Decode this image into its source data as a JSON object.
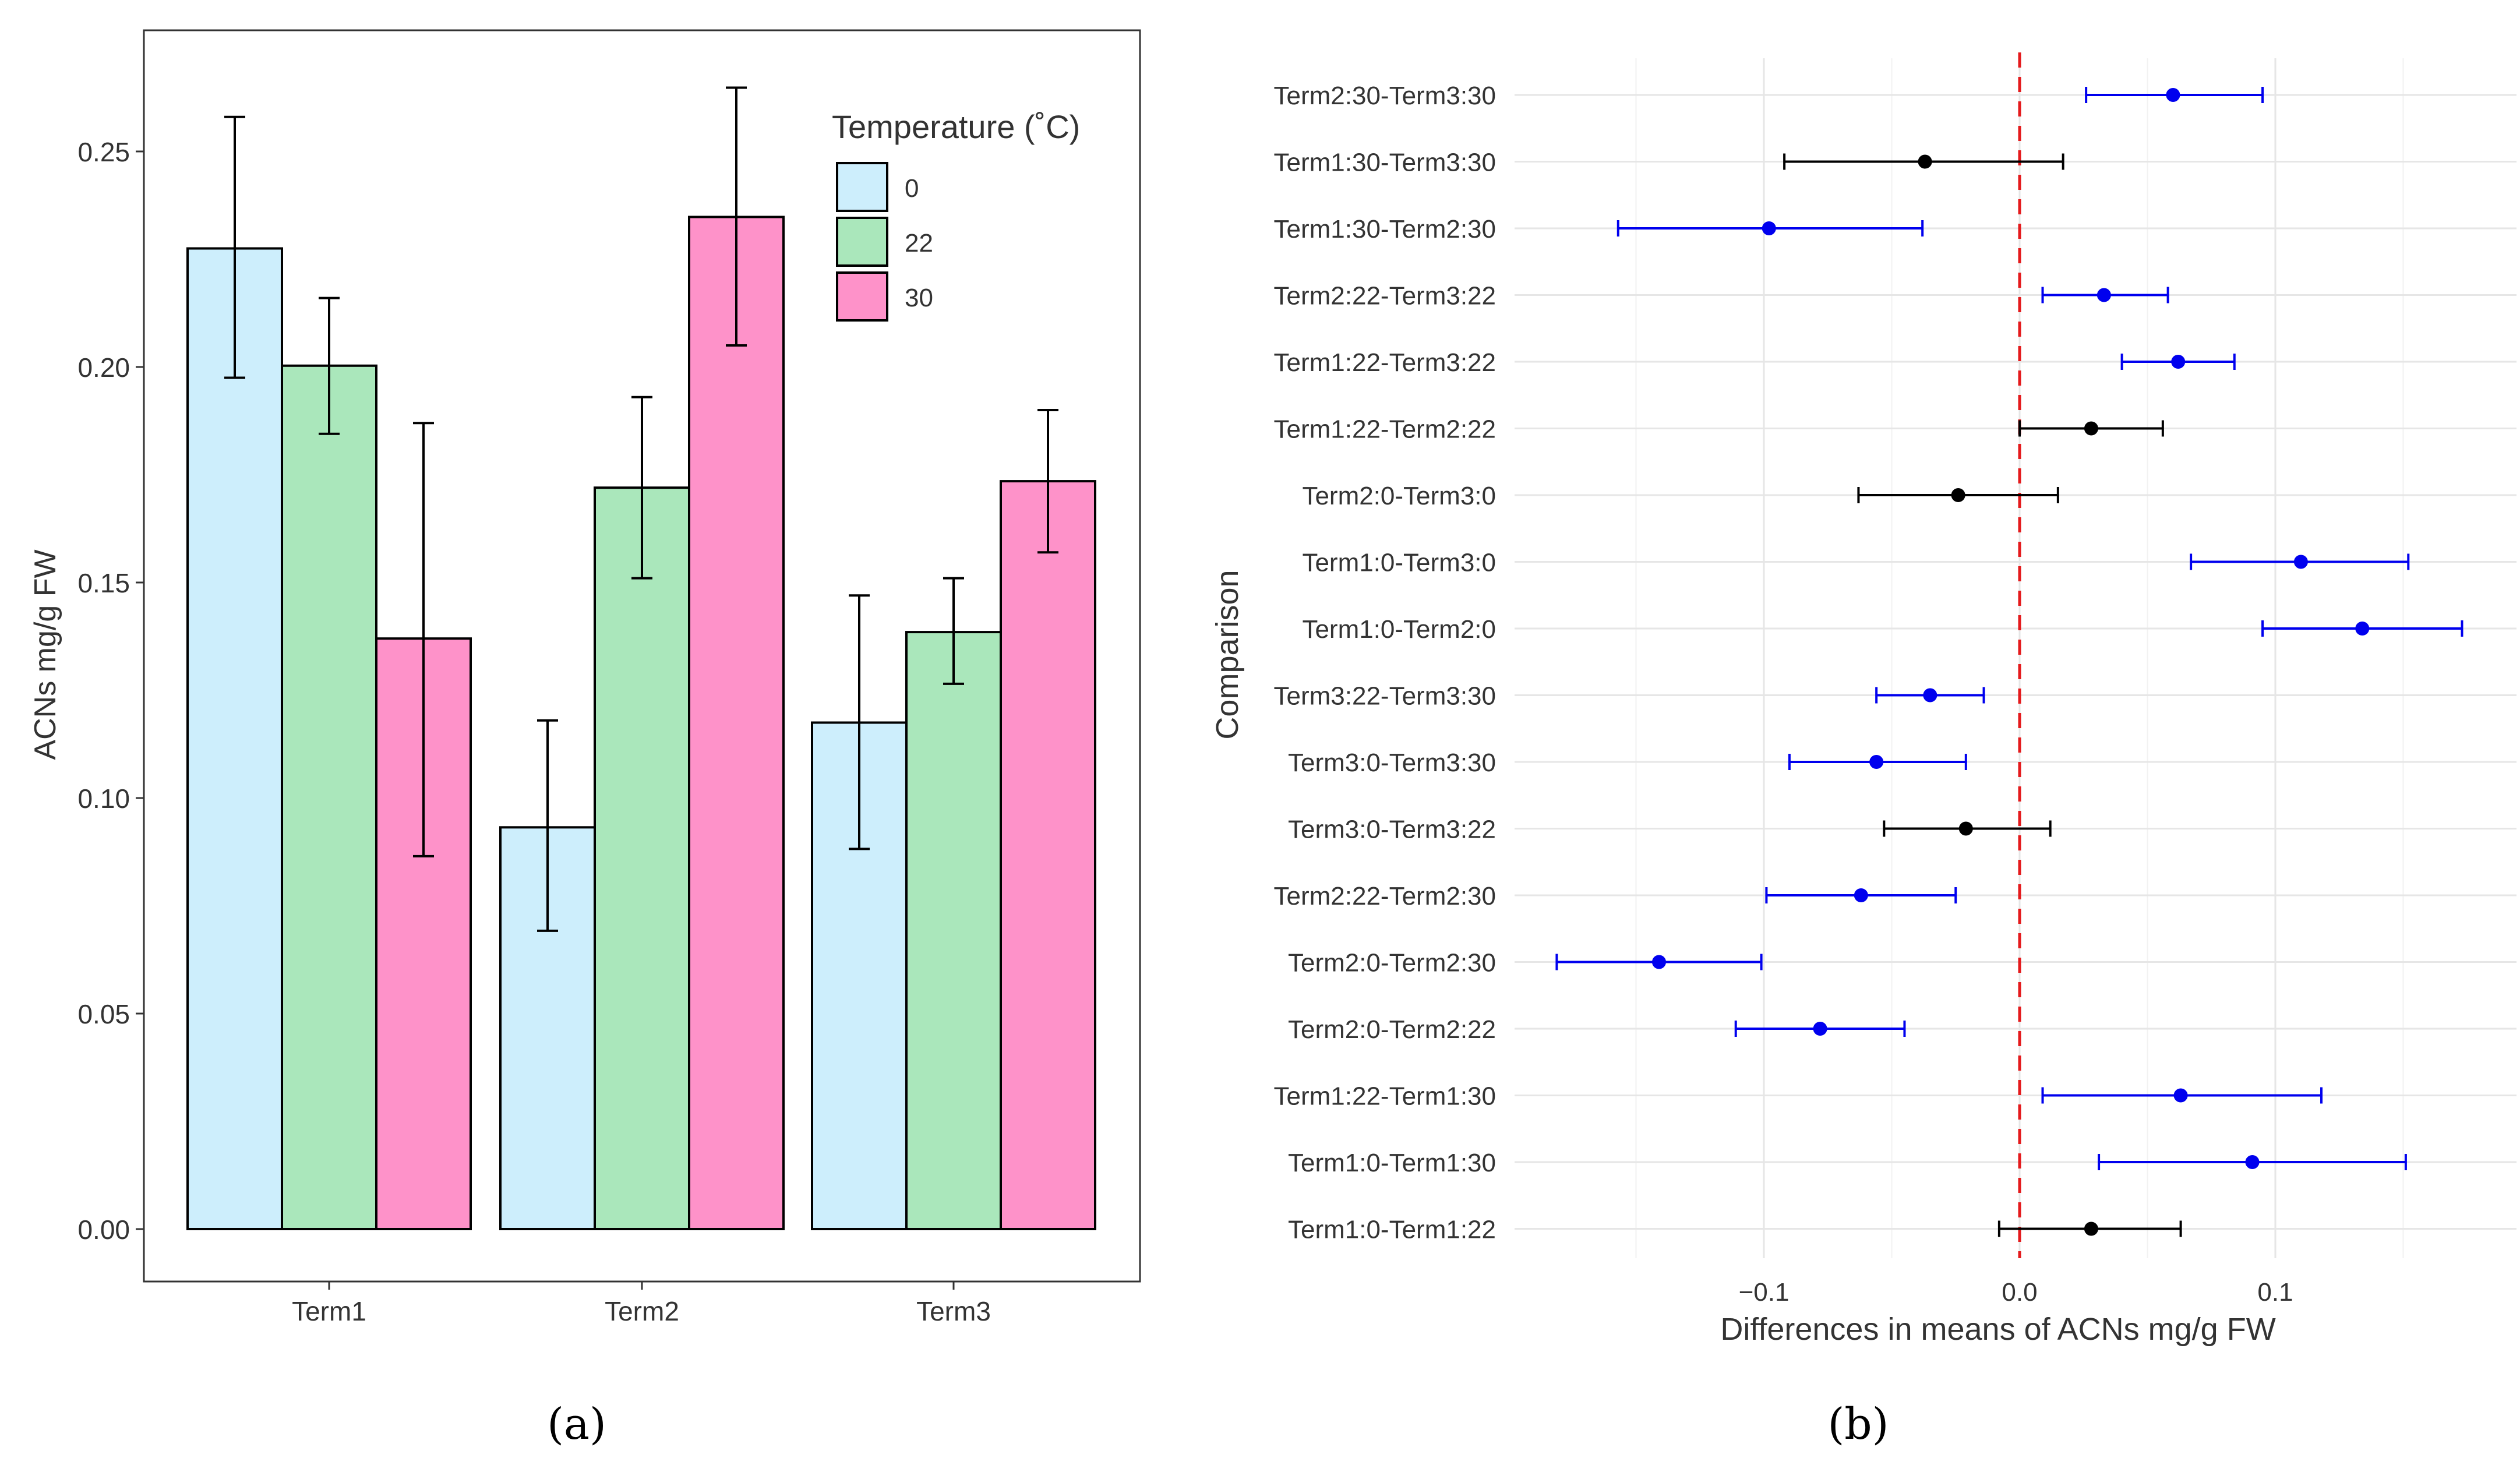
{
  "chart_data": [
    {
      "id": "a",
      "type": "bar",
      "caption": "(a)",
      "ylabel": "ACNs mg/g FW",
      "xlabel": "",
      "categories": [
        "Term1",
        "Term2",
        "Term3"
      ],
      "ylim": [
        0,
        0.272
      ],
      "yticks": [
        0.0,
        0.05,
        0.1,
        0.15,
        0.2,
        0.25
      ],
      "ytick_labels": [
        "0.00",
        "0.05",
        "0.10",
        "0.15",
        "0.20",
        "0.25"
      ],
      "legend": {
        "title": "Temperature (˚C)",
        "position": "top-right"
      },
      "series": [
        {
          "name": "0",
          "color": "#cdeefc",
          "values": [
            0.2275,
            0.0932,
            0.1175
          ],
          "err_low": [
            0.1975,
            0.0692,
            0.0882
          ],
          "err_high": [
            0.258,
            0.118,
            0.147
          ]
        },
        {
          "name": "22",
          "color": "#aae7bb",
          "values": [
            0.2003,
            0.172,
            0.1385
          ],
          "err_low": [
            0.1845,
            0.151,
            0.1265
          ],
          "err_high": [
            0.216,
            0.193,
            0.151
          ]
        },
        {
          "name": "30",
          "color": "#fe92c9",
          "values": [
            0.137,
            0.2348,
            0.1735
          ],
          "err_low": [
            0.0865,
            0.205,
            0.157
          ],
          "err_high": [
            0.187,
            0.2648,
            0.19
          ]
        }
      ]
    },
    {
      "id": "b",
      "type": "scatter",
      "caption": "(b)",
      "xlabel": "Differences in means of ACNs mg/g FW",
      "ylabel": "Comparison",
      "xlim": [
        -0.185,
        0.188
      ],
      "xticks": [
        -0.1,
        0.0,
        0.1
      ],
      "xtick_labels": [
        "−0.1",
        "0.0",
        "0.1"
      ],
      "reference_line": 0,
      "significant_color": "#0000ee",
      "nonsignificant_color": "#000000",
      "comparisons": [
        {
          "label": "Term2:30-Term3:30",
          "diff": 0.06,
          "lwr": 0.026,
          "upr": 0.095,
          "significant": true
        },
        {
          "label": "Term1:30-Term3:30",
          "diff": -0.037,
          "lwr": -0.092,
          "upr": 0.017,
          "significant": false
        },
        {
          "label": "Term1:30-Term2:30",
          "diff": -0.098,
          "lwr": -0.157,
          "upr": -0.038,
          "significant": true
        },
        {
          "label": "Term2:22-Term3:22",
          "diff": 0.033,
          "lwr": 0.009,
          "upr": 0.058,
          "significant": true
        },
        {
          "label": "Term1:22-Term3:22",
          "diff": 0.062,
          "lwr": 0.04,
          "upr": 0.084,
          "significant": true
        },
        {
          "label": "Term1:22-Term2:22",
          "diff": 0.028,
          "lwr": 0.0,
          "upr": 0.056,
          "significant": false
        },
        {
          "label": "Term2:0-Term3:0",
          "diff": -0.024,
          "lwr": -0.063,
          "upr": 0.015,
          "significant": false
        },
        {
          "label": "Term1:0-Term3:0",
          "diff": 0.11,
          "lwr": 0.067,
          "upr": 0.152,
          "significant": true
        },
        {
          "label": "Term1:0-Term2:0",
          "diff": 0.134,
          "lwr": 0.095,
          "upr": 0.173,
          "significant": true
        },
        {
          "label": "Term3:22-Term3:30",
          "diff": -0.035,
          "lwr": -0.056,
          "upr": -0.014,
          "significant": true
        },
        {
          "label": "Term3:0-Term3:30",
          "diff": -0.056,
          "lwr": -0.09,
          "upr": -0.021,
          "significant": true
        },
        {
          "label": "Term3:0-Term3:22",
          "diff": -0.021,
          "lwr": -0.053,
          "upr": 0.012,
          "significant": false
        },
        {
          "label": "Term2:22-Term2:30",
          "diff": -0.062,
          "lwr": -0.099,
          "upr": -0.025,
          "significant": true
        },
        {
          "label": "Term2:0-Term2:30",
          "diff": -0.141,
          "lwr": -0.181,
          "upr": -0.101,
          "significant": true
        },
        {
          "label": "Term2:0-Term2:22",
          "diff": -0.078,
          "lwr": -0.111,
          "upr": -0.045,
          "significant": true
        },
        {
          "label": "Term1:22-Term1:30",
          "diff": 0.063,
          "lwr": 0.009,
          "upr": 0.118,
          "significant": true
        },
        {
          "label": "Term1:0-Term1:30",
          "diff": 0.091,
          "lwr": 0.031,
          "upr": 0.151,
          "significant": true
        },
        {
          "label": "Term1:0-Term1:22",
          "diff": 0.028,
          "lwr": -0.008,
          "upr": 0.063,
          "significant": false
        }
      ]
    }
  ]
}
